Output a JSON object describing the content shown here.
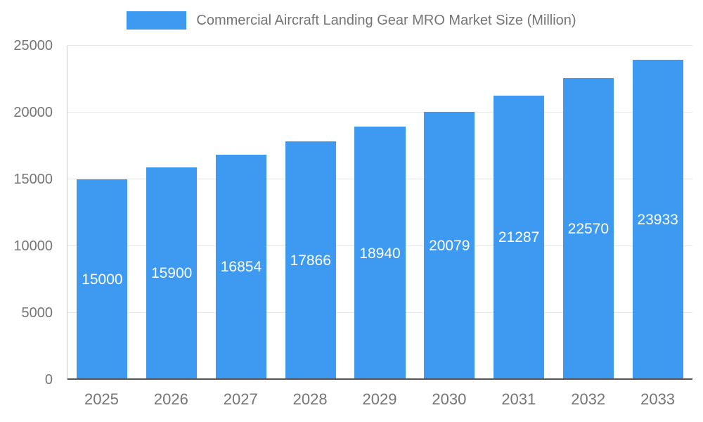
{
  "chart_data": {
    "type": "bar",
    "title": "Commercial Aircraft Landing Gear MRO Market Size (Million)",
    "categories": [
      "2025",
      "2026",
      "2027",
      "2028",
      "2029",
      "2030",
      "2031",
      "2032",
      "2033"
    ],
    "values": [
      15000,
      15900,
      16854,
      17866,
      18940,
      20079,
      21287,
      22570,
      23933
    ],
    "xlabel": "",
    "ylabel": "",
    "ylim": [
      0,
      25000
    ],
    "yticks": [
      0,
      5000,
      10000,
      15000,
      20000,
      25000
    ],
    "grid": true,
    "legend_position": "top-center",
    "colors": {
      "bar": "#3d9af0",
      "value_label": "#ffffff",
      "axis_text": "#757575",
      "gridline": "#e6e6e6",
      "baseline": "#555555"
    }
  }
}
